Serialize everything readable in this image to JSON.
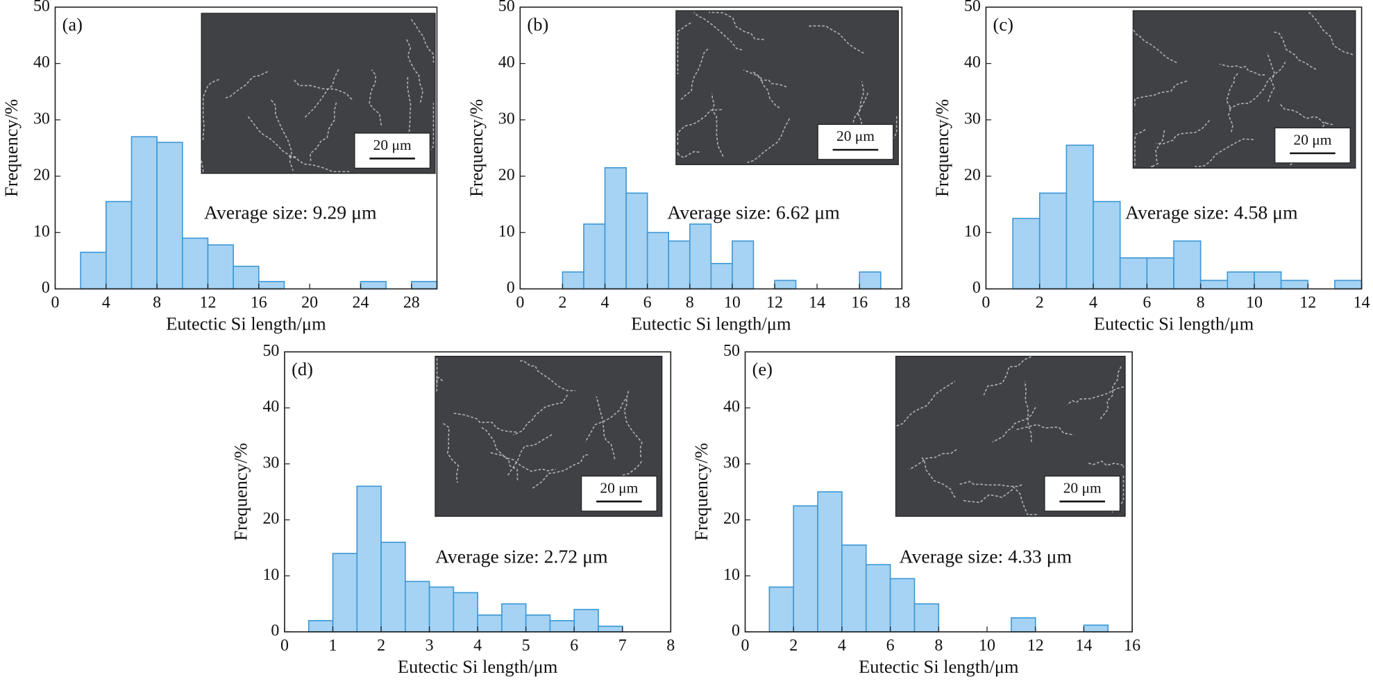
{
  "chart_data": [
    {
      "type": "histogram",
      "panel": "(a)",
      "annotation": "Average size: 9.29 μm",
      "scale_label": "20 μm",
      "xlabel": "Eutectic Si length/μm",
      "ylabel": "Frequency/%",
      "bins": [
        2,
        4,
        6,
        8,
        10,
        12,
        14,
        16,
        18,
        20,
        22,
        24,
        26,
        28,
        30
      ],
      "values": [
        6.5,
        15.5,
        27,
        26,
        9,
        7.8,
        4,
        1.3,
        0,
        0,
        0,
        1.3,
        0,
        1.3
      ],
      "color": "#a6d3f3",
      "edgecolor": "#3d98d6",
      "xlim": [
        0,
        30
      ],
      "ylim": [
        0,
        50
      ],
      "xticks": [
        0,
        4,
        8,
        12,
        16,
        20,
        24,
        28
      ],
      "yticks": [
        0,
        10,
        20,
        30,
        40,
        50
      ]
    },
    {
      "type": "histogram",
      "panel": "(b)",
      "annotation": "Average size: 6.62 μm",
      "scale_label": "20 μm",
      "xlabel": "Eutectic Si length/μm",
      "ylabel": "Frequency/%",
      "bins": [
        2,
        3,
        4,
        5,
        6,
        7,
        8,
        9,
        10,
        11,
        12,
        13,
        14,
        15,
        16,
        17
      ],
      "values": [
        3,
        11.5,
        21.5,
        17,
        10,
        8.5,
        11.5,
        4.5,
        8.5,
        0,
        1.5,
        0,
        0,
        0,
        3
      ],
      "color": "#a6d3f3",
      "edgecolor": "#3d98d6",
      "xlim": [
        0,
        18
      ],
      "ylim": [
        0,
        50
      ],
      "xticks": [
        0,
        2,
        4,
        6,
        8,
        10,
        12,
        14,
        16,
        18
      ],
      "yticks": [
        0,
        10,
        20,
        30,
        40,
        50
      ]
    },
    {
      "type": "histogram",
      "panel": "(c)",
      "annotation": "Average size: 4.58 μm",
      "scale_label": "20 μm",
      "xlabel": "Eutectic Si length/μm",
      "ylabel": "Frequency/%",
      "bins": [
        1,
        2,
        3,
        4,
        5,
        6,
        7,
        8,
        9,
        10,
        11,
        12,
        13,
        14
      ],
      "values": [
        12.5,
        17,
        25.5,
        15.5,
        5.5,
        5.5,
        8.5,
        1.5,
        3,
        3,
        1.5,
        0,
        1.5
      ],
      "color": "#a6d3f3",
      "edgecolor": "#3d98d6",
      "xlim": [
        0,
        14
      ],
      "ylim": [
        0,
        50
      ],
      "xticks": [
        0,
        2,
        4,
        6,
        8,
        10,
        12,
        14
      ],
      "yticks": [
        0,
        10,
        20,
        30,
        40,
        50
      ]
    },
    {
      "type": "histogram",
      "panel": "(d)",
      "annotation": "Average size: 2.72 μm",
      "scale_label": "20 μm",
      "xlabel": "Eutectic Si length/μm",
      "ylabel": "Frequency/%",
      "bins": [
        0.5,
        1,
        1.5,
        2,
        2.5,
        3,
        3.5,
        4,
        4.5,
        5,
        5.5,
        6,
        6.5,
        7
      ],
      "values": [
        2,
        14,
        26,
        16,
        9,
        8,
        7,
        3,
        5,
        3,
        2,
        4,
        1
      ],
      "color": "#a6d3f3",
      "edgecolor": "#3d98d6",
      "xlim": [
        0,
        8
      ],
      "ylim": [
        0,
        50
      ],
      "xticks": [
        0,
        1,
        2,
        3,
        4,
        5,
        6,
        7,
        8
      ],
      "yticks": [
        0,
        10,
        20,
        30,
        40,
        50
      ]
    },
    {
      "type": "histogram",
      "panel": "(e)",
      "annotation": "Average size: 4.33 μm",
      "scale_label": "20 μm",
      "xlabel": "Eutectic Si length/μm",
      "ylabel": "Frequency/%",
      "bins": [
        1,
        2,
        3,
        4,
        5,
        6,
        7,
        8,
        9,
        10,
        11,
        12,
        13,
        14,
        15
      ],
      "values": [
        8,
        22.5,
        25,
        15.5,
        12,
        9.5,
        5,
        0,
        0,
        0,
        2.5,
        0,
        0,
        1.2
      ],
      "color": "#a6d3f3",
      "edgecolor": "#3d98d6",
      "xlim": [
        0,
        16
      ],
      "ylim": [
        0,
        50
      ],
      "xticks": [
        0,
        2,
        4,
        6,
        8,
        10,
        12,
        14,
        16
      ],
      "yticks": [
        0,
        10,
        20,
        30,
        40,
        50
      ]
    }
  ]
}
